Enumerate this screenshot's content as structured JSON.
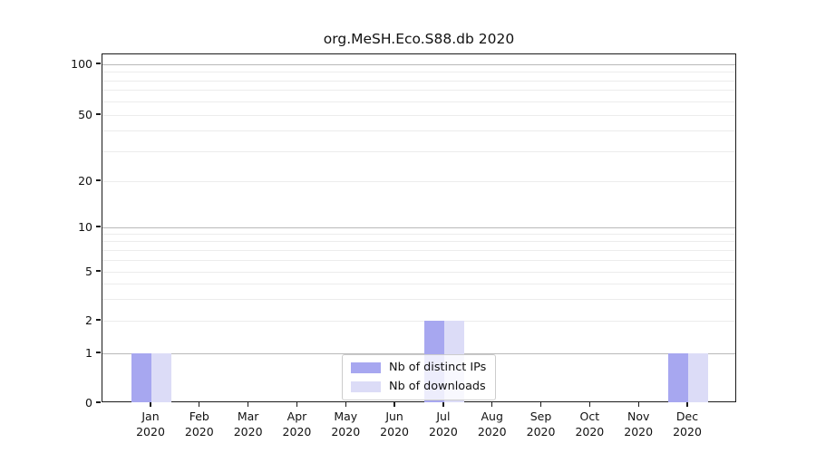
{
  "title": "org.MeSH.Eco.S88.db 2020",
  "legend": {
    "position": "lower center",
    "items": [
      {
        "label": "Nb of distinct IPs",
        "color": "#a7a7f0"
      },
      {
        "label": "Nb of downloads",
        "color": "#dcdcf7"
      }
    ]
  },
  "chart_data": {
    "type": "bar",
    "title": "org.MeSH.Eco.S88.db 2020",
    "categories": [
      "Jan 2020",
      "Feb 2020",
      "Mar 2020",
      "Apr 2020",
      "May 2020",
      "Jun 2020",
      "Jul 2020",
      "Aug 2020",
      "Sep 2020",
      "Oct 2020",
      "Nov 2020",
      "Dec 2020"
    ],
    "x_tick_month_labels": [
      "Jan",
      "Feb",
      "Mar",
      "Apr",
      "May",
      "Jun",
      "Jul",
      "Aug",
      "Sep",
      "Oct",
      "Nov",
      "Dec"
    ],
    "x_tick_year_label": "2020",
    "series": [
      {
        "name": "Nb of distinct IPs",
        "color": "#a7a7f0",
        "values": [
          1,
          0,
          0,
          0,
          0,
          0,
          2,
          0,
          0,
          0,
          0,
          1
        ]
      },
      {
        "name": "Nb of downloads",
        "color": "#dcdcf7",
        "values": [
          1,
          0,
          0,
          0,
          0,
          0,
          2,
          0,
          0,
          0,
          0,
          1
        ]
      }
    ],
    "xlabel": "",
    "ylabel": "",
    "y_axis": {
      "scale": "symlog",
      "tick_values": [
        0,
        1,
        2,
        5,
        10,
        20,
        50,
        100
      ],
      "tick_labels": [
        "0",
        "1",
        "2",
        "5",
        "10",
        "20",
        "50",
        "100"
      ],
      "major_gridlines": [
        1,
        10,
        100
      ],
      "minor_gridlines": [
        2,
        3,
        4,
        5,
        6,
        7,
        8,
        9,
        20,
        30,
        40,
        50,
        60,
        70,
        80,
        90
      ]
    },
    "ylim": [
      0,
      115
    ],
    "grid": true,
    "legend_position": "lower center"
  },
  "colors": {
    "spine": "#1a1a1a",
    "major_grid": "#b9b9b9",
    "minor_grid": "#ececec",
    "text": "#111111",
    "background": "#ffffff"
  }
}
